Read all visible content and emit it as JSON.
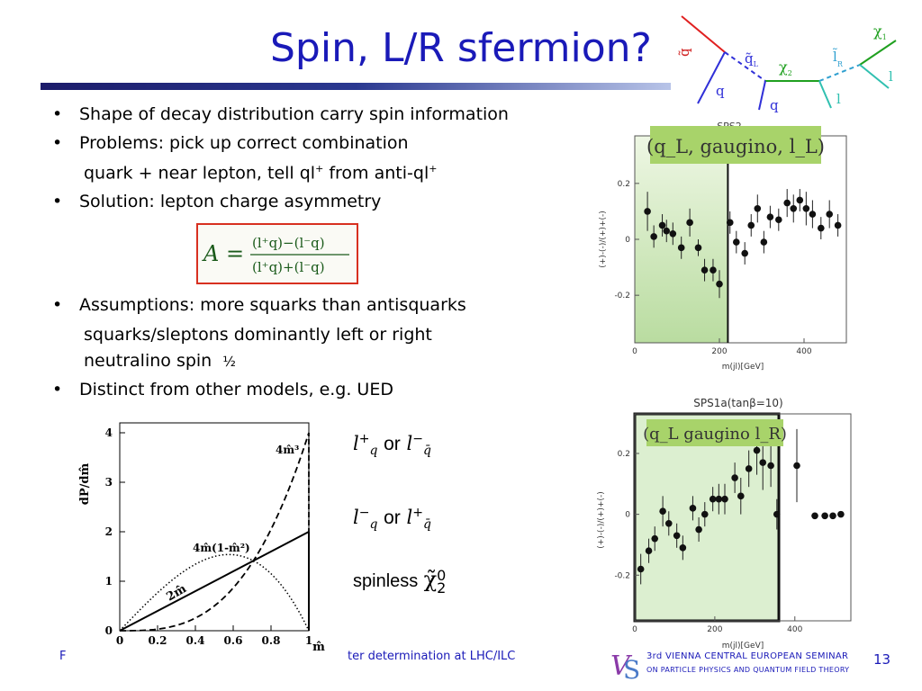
{
  "title": "Spin, L/R sfermion?",
  "bullets": [
    "Shape of decay distribution carry spin information",
    "Problems: pick up correct combination",
    "Solution: lepton charge asymmetry",
    "Assumptions: more squarks than antisquarks",
    "Distinct from other models, e.g. UED"
  ],
  "sub_lines": {
    "quark_near": "quark + near lepton, tell ql",
    "quark_near_mid": " from anti-ql",
    "sup_plus": "+",
    "squarks_sleptons": "squarks/sleptons dominantly left or right",
    "neutralino": "neutralino spin",
    "half": "½"
  },
  "formula": {
    "A": "A =",
    "num": "(l⁺q)−(l⁻q)",
    "den": "(l⁺q)+(l⁻q)"
  },
  "diagram": {
    "q_tilde": "q̃",
    "q_tilde_L": "q̃",
    "sub_L": "L",
    "chi2": "χ",
    "sub_2": "2",
    "l_tilde": "l̃",
    "sub_R": "R",
    "chi1": "χ",
    "sub_1": "1",
    "q1": "q",
    "q2": "q",
    "l1": "l",
    "l2": "l"
  },
  "legend_labels": {
    "row1_a": "l",
    "row1_a_sup": "+",
    "row1_a_sub": "q",
    "or1": "or",
    "row1_b": "l",
    "row1_b_sup": "−",
    "row1_b_sub": "q̄",
    "row2_a": "l",
    "row2_a_sup": "−",
    "row2_a_sub": "q",
    "or2": "or",
    "row2_b": "l",
    "row2_b_sup": "+",
    "row2_b_sub": "q̄",
    "spinless": "spinless",
    "chi20": "χ̃",
    "chi20_sup": "0",
    "chi20_sub": "2"
  },
  "footer": {
    "left_fragment": "F",
    "middle": "ter determination at LHC/ILC",
    "seminar_line1": "3rd VIENNA CENTRAL EUROPEAN SEMINAR",
    "seminar_line2": "ON PARTICLE PHYSICS AND QUANTUM FIELD THEORY",
    "page": "13"
  },
  "chart_data": [
    {
      "type": "line",
      "ylabel": "dP/dm̂",
      "xlabel": "m̂",
      "xlim": [
        0,
        1
      ],
      "ylim": [
        0,
        4.2
      ],
      "x_ticks": [
        "0",
        "0.2",
        "0.4",
        "0.6",
        "0.8",
        "1"
      ],
      "y_ticks": [
        "0",
        "1",
        "2",
        "3",
        "4"
      ],
      "annotations": [
        "2m̂",
        "4m̂(1-m̂²)",
        "4m̂³"
      ],
      "series": [
        {
          "values_desc": "2m̂",
          "points": [
            [
              0,
              0
            ],
            [
              1,
              2
            ]
          ]
        },
        {
          "values_desc": "4m̂(1-m̂²)",
          "points": [
            [
              0,
              0
            ],
            [
              0.2,
              0.77
            ],
            [
              0.4,
              1.34
            ],
            [
              0.58,
              1.54
            ],
            [
              0.7,
              1.43
            ],
            [
              0.8,
              1.15
            ],
            [
              0.9,
              0.68
            ],
            [
              1,
              0
            ]
          ]
        },
        {
          "values_desc": "4m̂³",
          "points": [
            [
              0,
              0
            ],
            [
              0.3,
              0.11
            ],
            [
              0.5,
              0.5
            ],
            [
              0.6,
              0.86
            ],
            [
              0.7,
              1.37
            ],
            [
              0.8,
              2.05
            ],
            [
              0.9,
              2.92
            ],
            [
              1,
              4
            ]
          ]
        }
      ]
    },
    {
      "type": "scatter",
      "title": "SPS2",
      "label": "(q_L, gaugino, l_L)",
      "ylabel": "(+)-(-)/(+)+(-)",
      "xlabel": "m(jl)[GeV]",
      "xlim": [
        0,
        500
      ],
      "ylim": [
        -0.37,
        0.37
      ],
      "x_ticks": [
        "0",
        "200",
        "400"
      ],
      "y_ticks": [
        "0.2",
        "0",
        "-0.2"
      ],
      "cut_x": 220,
      "points": [
        [
          30,
          0.1,
          0.07
        ],
        [
          45,
          0.01,
          0.04
        ],
        [
          65,
          0.05,
          0.04
        ],
        [
          75,
          0.03,
          0.04
        ],
        [
          90,
          0.02,
          0.04
        ],
        [
          110,
          -0.03,
          0.04
        ],
        [
          130,
          0.06,
          0.05
        ],
        [
          150,
          -0.03,
          0.03
        ],
        [
          165,
          -0.11,
          0.04
        ],
        [
          185,
          -0.11,
          0.04
        ],
        [
          200,
          -0.16,
          0.05
        ],
        [
          225,
          0.06,
          0.04
        ],
        [
          240,
          -0.01,
          0.04
        ],
        [
          260,
          -0.05,
          0.04
        ],
        [
          275,
          0.05,
          0.04
        ],
        [
          290,
          0.11,
          0.05
        ],
        [
          305,
          -0.01,
          0.04
        ],
        [
          320,
          0.08,
          0.04
        ],
        [
          340,
          0.07,
          0.04
        ],
        [
          360,
          0.13,
          0.05
        ],
        [
          375,
          0.11,
          0.05
        ],
        [
          390,
          0.14,
          0.04
        ],
        [
          405,
          0.11,
          0.06
        ],
        [
          420,
          0.09,
          0.05
        ],
        [
          440,
          0.04,
          0.04
        ],
        [
          460,
          0.09,
          0.05
        ],
        [
          480,
          0.05,
          0.04
        ]
      ]
    },
    {
      "type": "scatter",
      "title": "SPS1a(tanβ=10)",
      "label": "(q_L gaugino l_R)",
      "ylabel": "(+)-(-)/(+)+(-)",
      "xlabel": "m(jl)[GeV]",
      "xlim": [
        0,
        540
      ],
      "ylim": [
        -0.35,
        0.33
      ],
      "x_ticks": [
        "0",
        "200",
        "400"
      ],
      "y_ticks": [
        "0.2",
        "0",
        "-0.2"
      ],
      "points": [
        [
          15,
          -0.18,
          0.05
        ],
        [
          35,
          -0.12,
          0.04
        ],
        [
          50,
          -0.08,
          0.04
        ],
        [
          70,
          0.01,
          0.05
        ],
        [
          85,
          -0.03,
          0.04
        ],
        [
          105,
          -0.07,
          0.04
        ],
        [
          120,
          -0.11,
          0.04
        ],
        [
          145,
          0.02,
          0.04
        ],
        [
          160,
          -0.05,
          0.04
        ],
        [
          175,
          0.0,
          0.04
        ],
        [
          195,
          0.05,
          0.04
        ],
        [
          210,
          0.05,
          0.05
        ],
        [
          225,
          0.05,
          0.05
        ],
        [
          250,
          0.12,
          0.05
        ],
        [
          265,
          0.06,
          0.06
        ],
        [
          285,
          0.15,
          0.06
        ],
        [
          305,
          0.21,
          0.08
        ],
        [
          320,
          0.17,
          0.09
        ],
        [
          340,
          0.16,
          0.07
        ],
        [
          355,
          0.0,
          0.05
        ],
        [
          405,
          0.16,
          0.12
        ],
        [
          450,
          -0.005,
          0.0
        ],
        [
          475,
          -0.005,
          0.0
        ],
        [
          495,
          -0.005,
          0.0
        ],
        [
          515,
          0.0,
          0.0
        ]
      ]
    }
  ]
}
